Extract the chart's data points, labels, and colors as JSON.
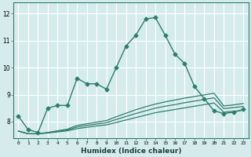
{
  "xlabel": "Humidex (Indice chaleur)",
  "xlim": [
    -0.5,
    23.5
  ],
  "ylim": [
    7.4,
    12.4
  ],
  "xticks": [
    0,
    1,
    2,
    3,
    4,
    5,
    6,
    7,
    8,
    9,
    10,
    11,
    12,
    13,
    14,
    15,
    16,
    17,
    18,
    19,
    20,
    21,
    22,
    23
  ],
  "yticks": [
    8,
    9,
    10,
    11,
    12
  ],
  "background_color": "#d6ecec",
  "grid_color": "#ffffff",
  "line_color": "#2d7d6e",
  "lines": [
    {
      "x": [
        0,
        1,
        2,
        3,
        4,
        5,
        6,
        7,
        8,
        9,
        10,
        11,
        12,
        13,
        14,
        15,
        16,
        17,
        18,
        19,
        20,
        21,
        22,
        23
      ],
      "y": [
        8.2,
        7.7,
        7.6,
        8.5,
        8.6,
        8.6,
        9.6,
        9.4,
        9.4,
        9.2,
        10.0,
        10.8,
        11.2,
        11.8,
        11.85,
        11.2,
        10.5,
        10.15,
        9.3,
        8.85,
        8.4,
        8.3,
        8.35,
        8.45
      ],
      "marker": "D",
      "markersize": 2.5,
      "linewidth": 1.0
    },
    {
      "x": [
        0,
        1,
        2,
        3,
        4,
        5,
        6,
        7,
        8,
        9,
        10,
        11,
        12,
        13,
        14,
        15,
        16,
        17,
        18,
        19,
        20,
        21,
        22,
        23
      ],
      "y": [
        7.65,
        7.55,
        7.55,
        7.58,
        7.62,
        7.66,
        7.74,
        7.79,
        7.84,
        7.88,
        7.97,
        8.06,
        8.15,
        8.24,
        8.33,
        8.39,
        8.45,
        8.51,
        8.57,
        8.63,
        8.69,
        8.35,
        8.38,
        8.42
      ],
      "marker": null,
      "markersize": 0,
      "linewidth": 0.9
    },
    {
      "x": [
        0,
        1,
        2,
        3,
        4,
        5,
        6,
        7,
        8,
        9,
        10,
        11,
        12,
        13,
        14,
        15,
        16,
        17,
        18,
        19,
        20,
        21,
        22,
        23
      ],
      "y": [
        7.65,
        7.55,
        7.55,
        7.59,
        7.64,
        7.69,
        7.8,
        7.86,
        7.91,
        7.96,
        8.08,
        8.19,
        8.3,
        8.4,
        8.5,
        8.57,
        8.63,
        8.7,
        8.76,
        8.82,
        8.88,
        8.48,
        8.52,
        8.56
      ],
      "marker": null,
      "markersize": 0,
      "linewidth": 0.9
    },
    {
      "x": [
        0,
        1,
        2,
        3,
        4,
        5,
        6,
        7,
        8,
        9,
        10,
        11,
        12,
        13,
        14,
        15,
        16,
        17,
        18,
        19,
        20,
        21,
        22,
        23
      ],
      "y": [
        7.65,
        7.55,
        7.55,
        7.6,
        7.66,
        7.72,
        7.86,
        7.92,
        7.98,
        8.04,
        8.18,
        8.31,
        8.44,
        8.55,
        8.65,
        8.73,
        8.8,
        8.87,
        8.93,
        8.99,
        9.05,
        8.58,
        8.62,
        8.67
      ],
      "marker": null,
      "markersize": 0,
      "linewidth": 0.9
    }
  ]
}
